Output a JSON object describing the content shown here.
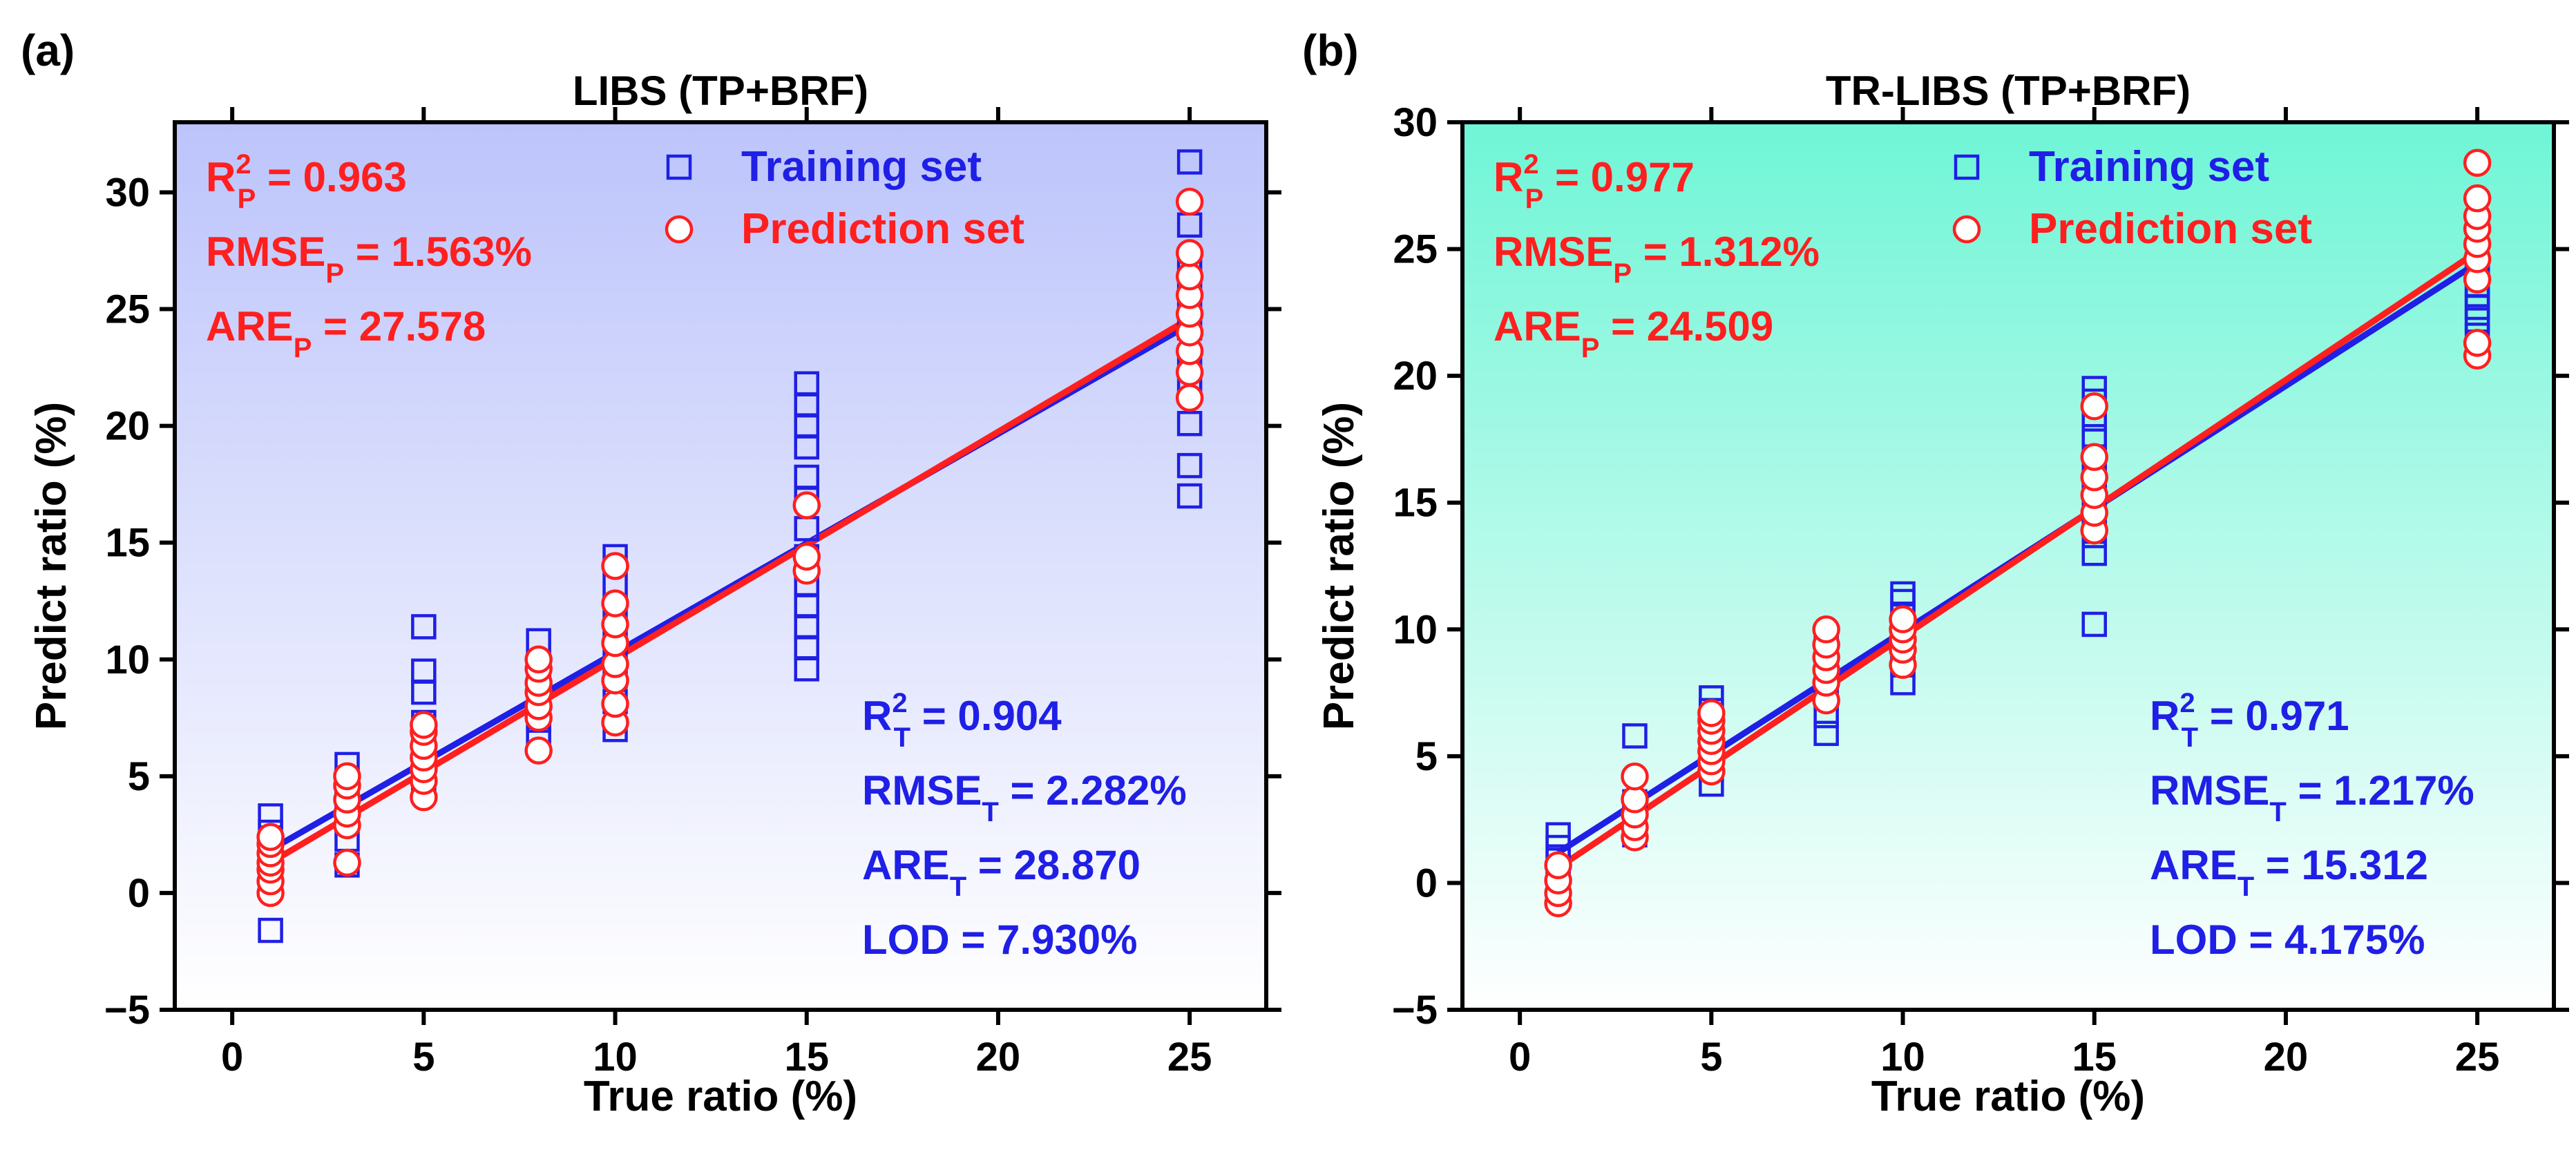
{
  "chart_data": [
    {
      "type": "scatter",
      "panel_label": "(a)",
      "title": "LIBS (TP+BRF)",
      "xlabel": "True ratio (%)",
      "ylabel": "Predict ratio (%)",
      "xlim": [
        -1.5,
        27
      ],
      "ylim": [
        -5,
        33
      ],
      "xticks": [
        0,
        5,
        10,
        15,
        20,
        25
      ],
      "yticks": [
        -5,
        0,
        5,
        10,
        15,
        20,
        25,
        30
      ],
      "background": {
        "top_color": "#bcc4fb",
        "bottom_color": "#ffffff"
      },
      "legend": {
        "position": "top-center",
        "entries": [
          {
            "label": "Training set",
            "marker": "square",
            "color": "#1f1fe6"
          },
          {
            "label": "Prediction set",
            "marker": "circle",
            "color": "#ff1f1f"
          }
        ]
      },
      "series": [
        {
          "name": "Training set",
          "marker": "square",
          "color": "#1f1fe6",
          "points": [
            [
              1,
              -1.6
            ],
            [
              1,
              0.4
            ],
            [
              1,
              1.2
            ],
            [
              1,
              1.8
            ],
            [
              1,
              2.6
            ],
            [
              1,
              3.3
            ],
            [
              3,
              1.2
            ],
            [
              3,
              2.3
            ],
            [
              3,
              3.2
            ],
            [
              3,
              4.1
            ],
            [
              3,
              4.8
            ],
            [
              3,
              5.5
            ],
            [
              5,
              4.8
            ],
            [
              5,
              5.6
            ],
            [
              5,
              6.6
            ],
            [
              5,
              7.3
            ],
            [
              5,
              8.6
            ],
            [
              5,
              9.5
            ],
            [
              5,
              11.4
            ],
            [
              8,
              6.6
            ],
            [
              8,
              7.4
            ],
            [
              8,
              8.2
            ],
            [
              8,
              9.1
            ],
            [
              8,
              9.8
            ],
            [
              8,
              10.8
            ],
            [
              10,
              7.0
            ],
            [
              10,
              8.2
            ],
            [
              10,
              9.3
            ],
            [
              10,
              10.2
            ],
            [
              10,
              11.1
            ],
            [
              10,
              12.2
            ],
            [
              10,
              13.2
            ],
            [
              10,
              14.4
            ],
            [
              15,
              9.6
            ],
            [
              15,
              10.5
            ],
            [
              15,
              11.4
            ],
            [
              15,
              12.3
            ],
            [
              15,
              13.2
            ],
            [
              15,
              14.4
            ],
            [
              15,
              15.6
            ],
            [
              15,
              16.9
            ],
            [
              15,
              17.8
            ],
            [
              15,
              19.1
            ],
            [
              15,
              20.0
            ],
            [
              15,
              20.9
            ],
            [
              15,
              21.8
            ],
            [
              25,
              17.0
            ],
            [
              25,
              18.3
            ],
            [
              25,
              20.1
            ],
            [
              25,
              21.5
            ],
            [
              25,
              22.9
            ],
            [
              25,
              24.2
            ],
            [
              25,
              25.6
            ],
            [
              25,
              26.9
            ],
            [
              25,
              28.6
            ],
            [
              25,
              31.3
            ]
          ],
          "fit": {
            "x": [
              1,
              25
            ],
            "y": [
              1.85,
              24.35
            ]
          }
        },
        {
          "name": "Prediction set",
          "marker": "circle",
          "color": "#ff1f1f",
          "points": [
            [
              1,
              0.0
            ],
            [
              1,
              0.5
            ],
            [
              1,
              1.0
            ],
            [
              1,
              1.3
            ],
            [
              1,
              1.7
            ],
            [
              1,
              2.1
            ],
            [
              1,
              2.4
            ],
            [
              3,
              1.3
            ],
            [
              3,
              2.9
            ],
            [
              3,
              3.4
            ],
            [
              3,
              4.0
            ],
            [
              3,
              4.6
            ],
            [
              3,
              5.0
            ],
            [
              5,
              4.1
            ],
            [
              5,
              4.8
            ],
            [
              5,
              5.3
            ],
            [
              5,
              5.8
            ],
            [
              5,
              6.3
            ],
            [
              5,
              6.9
            ],
            [
              5,
              7.2
            ],
            [
              8,
              6.1
            ],
            [
              8,
              7.5
            ],
            [
              8,
              8.0
            ],
            [
              8,
              8.6
            ],
            [
              8,
              9.0
            ],
            [
              8,
              9.6
            ],
            [
              8,
              10.0
            ],
            [
              10,
              7.3
            ],
            [
              10,
              8.1
            ],
            [
              10,
              9.1
            ],
            [
              10,
              9.8
            ],
            [
              10,
              10.7
            ],
            [
              10,
              11.5
            ],
            [
              10,
              12.4
            ],
            [
              10,
              14.0
            ],
            [
              15,
              13.8
            ],
            [
              15,
              14.4
            ],
            [
              15,
              16.6
            ],
            [
              25,
              21.2
            ],
            [
              25,
              22.3
            ],
            [
              25,
              23.2
            ],
            [
              25,
              24.0
            ],
            [
              25,
              24.8
            ],
            [
              25,
              25.6
            ],
            [
              25,
              26.4
            ],
            [
              25,
              27.4
            ],
            [
              25,
              29.6
            ]
          ],
          "fit": {
            "x": [
              1,
              25
            ],
            "y": [
              1.3,
              24.6
            ]
          }
        }
      ],
      "annotations": {
        "prediction": [
          {
            "main": "R",
            "sup": "2",
            "sub": "P",
            "value": " = 0.963"
          },
          {
            "main": "RMSE",
            "sub": "P",
            "value": " = 1.563%"
          },
          {
            "main": "ARE",
            "sub": "P",
            "value": " = 27.578"
          }
        ],
        "training": [
          {
            "main": "R",
            "sup": "2",
            "sub": "T",
            "value": " = 0.904"
          },
          {
            "main": "RMSE",
            "sub": "T",
            "value": " = 2.282%"
          },
          {
            "main": "ARE",
            "sub": "T",
            "value": " = 28.870"
          },
          {
            "main": "LOD = 7.930%"
          }
        ]
      }
    },
    {
      "type": "scatter",
      "panel_label": "(b)",
      "title": "TR-LIBS (TP+BRF)",
      "xlabel": "True ratio (%)",
      "ylabel": "Predict ratio (%)",
      "xlim": [
        -1.5,
        27
      ],
      "ylim": [
        -5,
        30
      ],
      "xticks": [
        0,
        5,
        10,
        15,
        20,
        25
      ],
      "yticks": [
        -5,
        0,
        5,
        10,
        15,
        20,
        25,
        30
      ],
      "background": {
        "top_color": "#6ff5d6",
        "bottom_color": "#ffffff"
      },
      "legend": {
        "position": "top-center",
        "entries": [
          {
            "label": "Training set",
            "marker": "square",
            "color": "#1f1fe6"
          },
          {
            "label": "Prediction set",
            "marker": "circle",
            "color": "#ff1f1f"
          }
        ]
      },
      "series": [
        {
          "name": "Training set",
          "marker": "square",
          "color": "#1f1fe6",
          "points": [
            [
              1,
              0.2
            ],
            [
              1,
              0.9
            ],
            [
              1,
              1.4
            ],
            [
              1,
              1.9
            ],
            [
              3,
              1.9
            ],
            [
              3,
              2.6
            ],
            [
              3,
              3.2
            ],
            [
              3,
              5.8
            ],
            [
              5,
              3.9
            ],
            [
              5,
              4.5
            ],
            [
              5,
              5.1
            ],
            [
              5,
              5.6
            ],
            [
              5,
              6.2
            ],
            [
              5,
              6.8
            ],
            [
              5,
              7.3
            ],
            [
              8,
              5.9
            ],
            [
              8,
              6.6
            ],
            [
              8,
              7.3
            ],
            [
              8,
              8.1
            ],
            [
              8,
              8.8
            ],
            [
              8,
              9.4
            ],
            [
              10,
              7.9
            ],
            [
              10,
              8.6
            ],
            [
              10,
              9.3
            ],
            [
              10,
              10.0
            ],
            [
              10,
              10.6
            ],
            [
              10,
              11.1
            ],
            [
              10,
              11.4
            ],
            [
              15,
              10.2
            ],
            [
              15,
              13.0
            ],
            [
              15,
              13.7
            ],
            [
              15,
              14.5
            ],
            [
              15,
              15.3
            ],
            [
              15,
              16.1
            ],
            [
              15,
              16.8
            ],
            [
              15,
              17.6
            ],
            [
              15,
              18.3
            ],
            [
              15,
              19.0
            ],
            [
              15,
              19.5
            ],
            [
              25,
              21.6
            ],
            [
              25,
              22.2
            ],
            [
              25,
              22.7
            ],
            [
              25,
              23.2
            ],
            [
              25,
              23.6
            ],
            [
              25,
              24.0
            ],
            [
              25,
              24.4
            ]
          ],
          "fit": {
            "x": [
              1,
              25
            ],
            "y": [
              1.2,
              24.45
            ]
          }
        },
        {
          "name": "Prediction set",
          "marker": "circle",
          "color": "#ff1f1f",
          "points": [
            [
              1,
              -0.8
            ],
            [
              1,
              -0.4
            ],
            [
              1,
              0.1
            ],
            [
              1,
              0.7
            ],
            [
              3,
              1.8
            ],
            [
              3,
              2.2
            ],
            [
              3,
              2.7
            ],
            [
              3,
              3.3
            ],
            [
              3,
              4.2
            ],
            [
              5,
              4.4
            ],
            [
              5,
              4.8
            ],
            [
              5,
              5.2
            ],
            [
              5,
              5.6
            ],
            [
              5,
              6.0
            ],
            [
              5,
              6.4
            ],
            [
              5,
              6.7
            ],
            [
              8,
              7.2
            ],
            [
              8,
              7.9
            ],
            [
              8,
              8.4
            ],
            [
              8,
              8.9
            ],
            [
              8,
              9.4
            ],
            [
              8,
              10.0
            ],
            [
              10,
              8.6
            ],
            [
              10,
              9.2
            ],
            [
              10,
              9.6
            ],
            [
              10,
              10.0
            ],
            [
              10,
              10.4
            ],
            [
              15,
              13.9
            ],
            [
              15,
              14.6
            ],
            [
              15,
              15.3
            ],
            [
              15,
              16.0
            ],
            [
              15,
              16.8
            ],
            [
              15,
              18.8
            ],
            [
              25,
              20.8
            ],
            [
              25,
              21.3
            ],
            [
              25,
              23.8
            ],
            [
              25,
              24.6
            ],
            [
              25,
              25.2
            ],
            [
              25,
              25.8
            ],
            [
              25,
              26.3
            ],
            [
              25,
              27.0
            ],
            [
              25,
              28.4
            ]
          ],
          "fit": {
            "x": [
              1,
              25
            ],
            "y": [
              0.6,
              24.9
            ]
          }
        }
      ],
      "annotations": {
        "prediction": [
          {
            "main": "R",
            "sup": "2",
            "sub": "P",
            "value": " = 0.977"
          },
          {
            "main": "RMSE",
            "sub": "P",
            "value": " = 1.312%"
          },
          {
            "main": "ARE",
            "sub": "P",
            "value": " = 24.509"
          }
        ],
        "training": [
          {
            "main": "R",
            "sup": "2",
            "sub": "T",
            "value": " = 0.971"
          },
          {
            "main": "RMSE",
            "sub": "T",
            "value": " = 1.217%"
          },
          {
            "main": "ARE",
            "sub": "T",
            "value": " = 15.312"
          },
          {
            "main": "LOD = 4.175%"
          }
        ]
      }
    }
  ]
}
